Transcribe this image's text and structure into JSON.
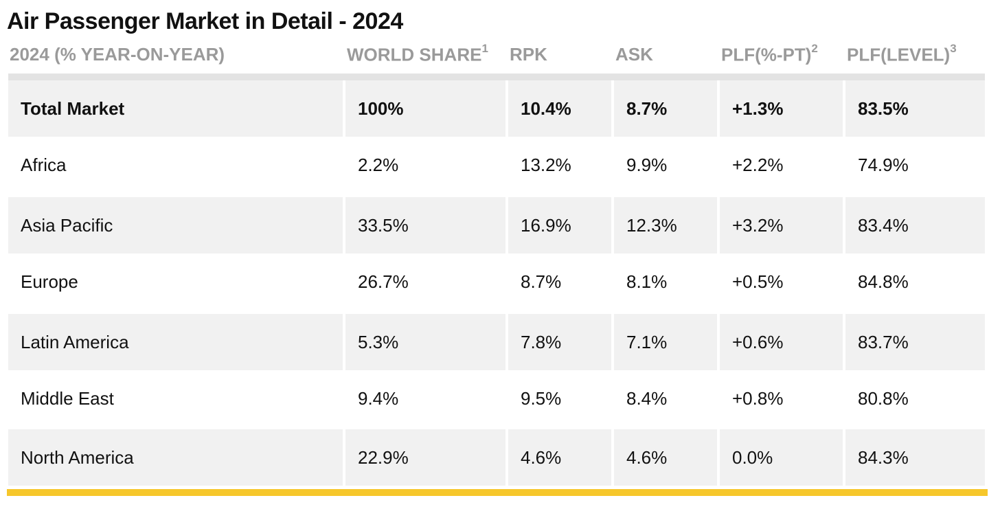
{
  "title": "Air Passenger Market in Detail - 2024",
  "header": {
    "col0": "2024 (% YEAR-ON-YEAR)",
    "col1": "WORLD SHARE",
    "col1_sup": "1",
    "col2": "RPK",
    "col3": "ASK",
    "col4": "PLF(%-PT)",
    "col4_sup": "2",
    "col5": "PLF(LEVEL)",
    "col5_sup": "3"
  },
  "rows": [
    [
      "Total Market",
      "100%",
      "10.4%",
      "8.7%",
      "+1.3%",
      "83.5%"
    ],
    [
      "Africa",
      "2.2%",
      "13.2%",
      "9.9%",
      "+2.2%",
      "74.9%"
    ],
    [
      "Asia Pacific",
      "33.5%",
      "16.9%",
      "12.3%",
      "+3.2%",
      "83.4%"
    ],
    [
      "Europe",
      "26.7%",
      "8.7%",
      "8.1%",
      "+0.5%",
      "84.8%"
    ],
    [
      "Latin America",
      "5.3%",
      "7.8%",
      "7.1%",
      "+0.6%",
      "83.7%"
    ],
    [
      "Middle East",
      "9.4%",
      "9.5%",
      "8.4%",
      "+0.8%",
      "80.8%"
    ],
    [
      "North America",
      "22.9%",
      "4.6%",
      "4.6%",
      "0.0%",
      "84.3%"
    ]
  ],
  "colors": {
    "header_text": "#9a9a9a",
    "row_shade": "#f1f1f1",
    "accent_bar": "#f6c72b"
  }
}
